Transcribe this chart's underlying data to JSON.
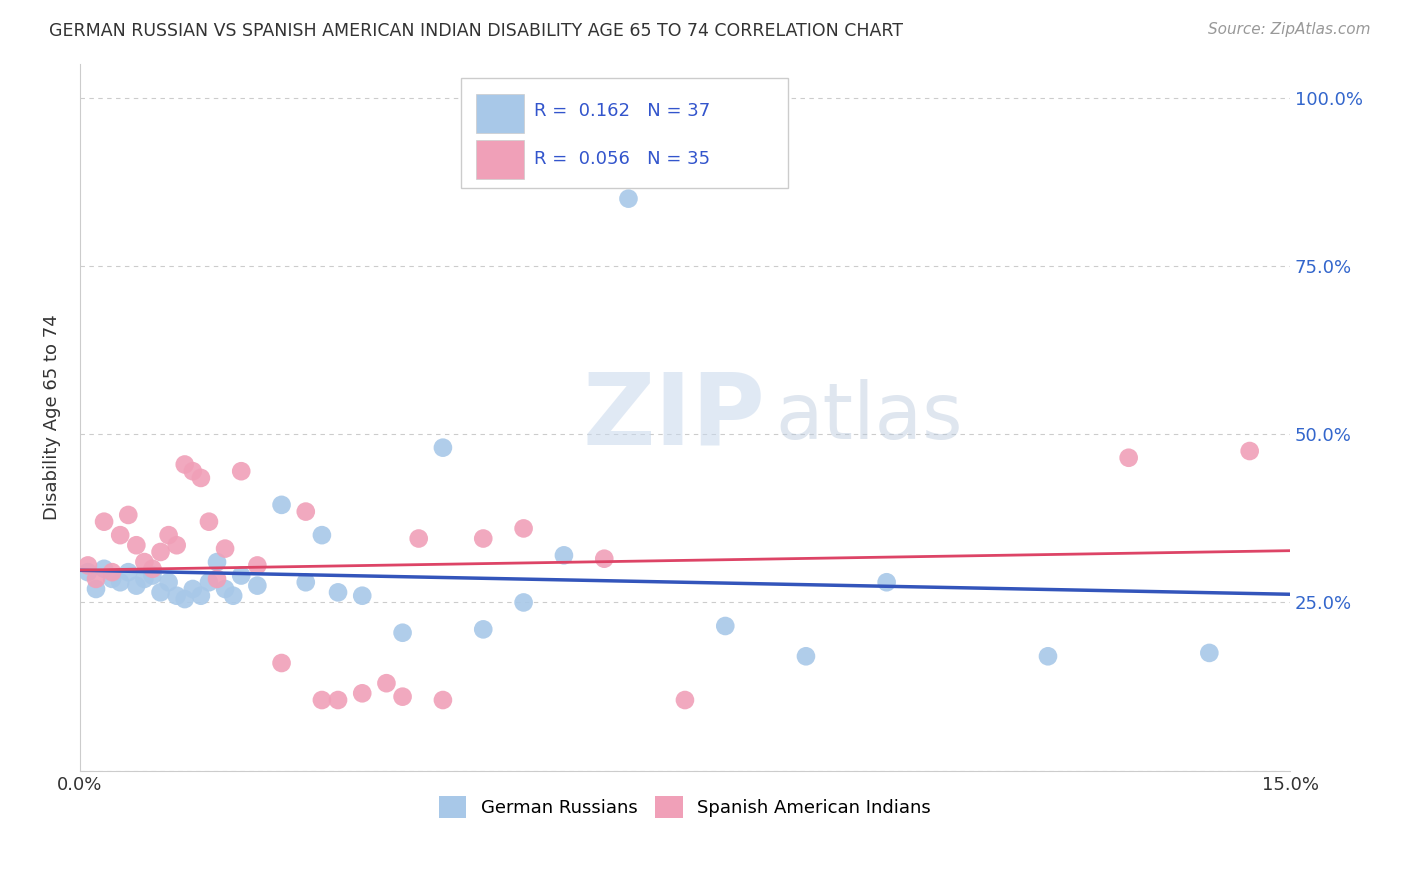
{
  "title": "GERMAN RUSSIAN VS SPANISH AMERICAN INDIAN DISABILITY AGE 65 TO 74 CORRELATION CHART",
  "source": "Source: ZipAtlas.com",
  "ylabel": "Disability Age 65 to 74",
  "watermark_zip": "ZIP",
  "watermark_atlas": "atlas",
  "blue_color": "#A8C8E8",
  "pink_color": "#F0A0B8",
  "blue_line_color": "#3355BB",
  "pink_line_color": "#DD4466",
  "R_blue": 0.162,
  "N_blue": 37,
  "R_pink": 0.056,
  "N_pink": 35,
  "blue_x": [
    0.001,
    0.002,
    0.003,
    0.004,
    0.005,
    0.006,
    0.007,
    0.008,
    0.009,
    0.01,
    0.011,
    0.012,
    0.013,
    0.014,
    0.015,
    0.016,
    0.017,
    0.018,
    0.019,
    0.02,
    0.022,
    0.025,
    0.028,
    0.03,
    0.032,
    0.035,
    0.04,
    0.045,
    0.05,
    0.055,
    0.06,
    0.068,
    0.08,
    0.09,
    0.1,
    0.12,
    0.14
  ],
  "blue_y": [
    0.295,
    0.27,
    0.3,
    0.285,
    0.28,
    0.295,
    0.275,
    0.285,
    0.29,
    0.265,
    0.28,
    0.26,
    0.255,
    0.27,
    0.26,
    0.28,
    0.31,
    0.27,
    0.26,
    0.29,
    0.275,
    0.395,
    0.28,
    0.35,
    0.265,
    0.26,
    0.205,
    0.48,
    0.21,
    0.25,
    0.32,
    0.85,
    0.215,
    0.17,
    0.28,
    0.17,
    0.175
  ],
  "pink_x": [
    0.001,
    0.002,
    0.003,
    0.004,
    0.005,
    0.006,
    0.007,
    0.008,
    0.009,
    0.01,
    0.011,
    0.012,
    0.013,
    0.014,
    0.015,
    0.016,
    0.017,
    0.018,
    0.02,
    0.022,
    0.025,
    0.028,
    0.03,
    0.032,
    0.035,
    0.038,
    0.04,
    0.042,
    0.045,
    0.05,
    0.055,
    0.065,
    0.075,
    0.13,
    0.145
  ],
  "pink_y": [
    0.305,
    0.285,
    0.37,
    0.295,
    0.35,
    0.38,
    0.335,
    0.31,
    0.3,
    0.325,
    0.35,
    0.335,
    0.455,
    0.445,
    0.435,
    0.37,
    0.285,
    0.33,
    0.445,
    0.305,
    0.16,
    0.385,
    0.105,
    0.105,
    0.115,
    0.13,
    0.11,
    0.345,
    0.105,
    0.345,
    0.36,
    0.315,
    0.105,
    0.465,
    0.475
  ],
  "xmin": 0.0,
  "xmax": 0.15,
  "ymin": 0.0,
  "ymax": 1.05,
  "yticks": [
    0.0,
    0.25,
    0.5,
    0.75,
    1.0
  ],
  "xticks": [
    0.0,
    0.05,
    0.1,
    0.15
  ],
  "xtick_labels": [
    "0.0%",
    "",
    "",
    "15.0%"
  ],
  "right_ytick_labels": [
    "",
    "25.0%",
    "50.0%",
    "75.0%",
    "100.0%"
  ],
  "grid_color": "#CCCCCC",
  "background_color": "#FFFFFF"
}
